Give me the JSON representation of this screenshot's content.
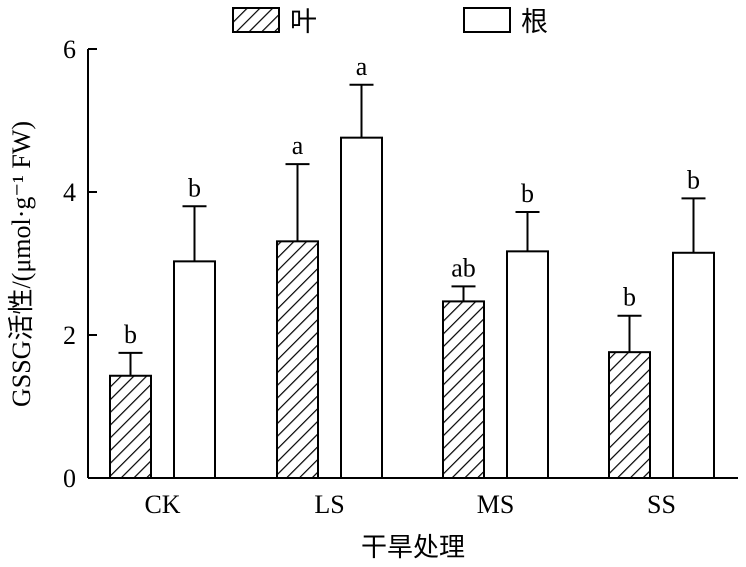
{
  "chart_data": {
    "type": "bar",
    "title": "",
    "xlabel": "干旱处理",
    "ylabel": "GSSG活性/(μmol·g⁻¹ FW)",
    "ylim": [
      0,
      6
    ],
    "yticks": [
      "0",
      "2",
      "4",
      "6"
    ],
    "categories": [
      "CK",
      "LS",
      "MS",
      "SS"
    ],
    "series": [
      {
        "name": "叶",
        "pattern": "hatched",
        "values": [
          1.43,
          3.31,
          2.47,
          1.76
        ],
        "errors": [
          0.32,
          1.08,
          0.21,
          0.51
        ],
        "labels": [
          "b",
          "a",
          "ab",
          "b"
        ]
      },
      {
        "name": "根",
        "pattern": "open",
        "values": [
          3.03,
          4.76,
          3.17,
          3.15
        ],
        "errors": [
          0.77,
          0.74,
          0.55,
          0.76
        ],
        "labels": [
          "b",
          "a",
          "b",
          "b"
        ]
      }
    ],
    "legend": "top",
    "grid": false
  }
}
